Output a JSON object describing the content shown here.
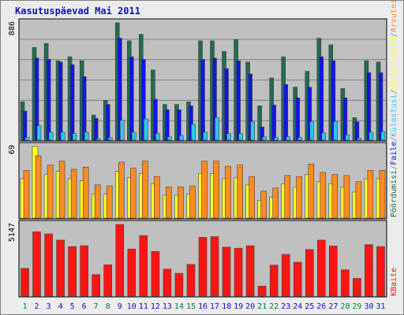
{
  "chart_data": {
    "type": "bar",
    "title": "Kasutuspäevad Mai 2011",
    "categories": [
      "1",
      "2",
      "3",
      "4",
      "5",
      "6",
      "7",
      "8",
      "9",
      "10",
      "11",
      "12",
      "13",
      "14",
      "15",
      "16",
      "17",
      "18",
      "19",
      "20",
      "21",
      "22",
      "23",
      "24",
      "25",
      "26",
      "27",
      "28",
      "29",
      "30",
      "31"
    ],
    "weekend_days": [
      "1",
      "7",
      "8",
      "14",
      "15",
      "21",
      "22",
      "28",
      "29"
    ],
    "panels": [
      {
        "name": "visits",
        "max_label": "886",
        "ylim": [
          0,
          886
        ],
        "series": [
          {
            "name": "Pöördumisi",
            "color": "#1e6e50",
            "values": [
              290,
              700,
              730,
              600,
              630,
              600,
              190,
              300,
              886,
              750,
              800,
              530,
              270,
              270,
              290,
              750,
              750,
              670,
              760,
              590,
              260,
              470,
              630,
              400,
              520,
              770,
              720,
              390,
              170,
              600,
              590
            ]
          },
          {
            "name": "Faile",
            "color": "#1414e6",
            "values": [
              220,
              620,
              610,
              590,
              570,
              480,
              165,
              270,
              770,
              630,
              610,
              310,
              230,
              230,
              260,
              610,
              620,
              540,
              600,
              500,
              100,
              265,
              420,
              320,
              400,
              630,
              600,
              320,
              140,
              510,
              510
            ]
          },
          {
            "name": "Külastusi",
            "color": "#28c8f0",
            "values": [
              20,
              110,
              60,
              60,
              50,
              60,
              10,
              20,
              150,
              60,
              160,
              50,
              25,
              35,
              120,
              60,
              170,
              50,
              50,
              140,
              25,
              20,
              25,
              20,
              140,
              55,
              140,
              40,
              15,
              60,
              65
            ]
          }
        ]
      },
      {
        "name": "hosts",
        "max_label": "69",
        "ylim": [
          0,
          69
        ],
        "series": [
          {
            "name": "Külastajaid",
            "color": "#ffff28",
            "values": [
              38,
              69,
              42,
              45,
              38,
              36,
              23,
              23,
              45,
              39,
              43,
              33,
              22,
              22,
              23,
              43,
              43,
              38,
              39,
              32,
              17,
              20,
              33,
              30,
              42,
              35,
              33,
              30,
              25,
              38,
              38
            ]
          },
          {
            "name": "Arvuteid",
            "color": "#ff8c1e",
            "values": [
              46,
              60,
              51,
              55,
              47,
              49,
              32,
              31,
              54,
              48,
              55,
              40,
              30,
              30,
              31,
              55,
              55,
              50,
              51,
              40,
              26,
              29,
              41,
              40,
              52,
              44,
              42,
              41,
              35,
              46,
              46
            ]
          }
        ]
      },
      {
        "name": "bandwidth",
        "max_label": "5147",
        "ylim": [
          0,
          5147
        ],
        "series": [
          {
            "name": "KBaite",
            "color": "#ff1414",
            "values": [
              1990,
              4620,
              4470,
              4020,
              3560,
              3620,
              1550,
              2250,
              5147,
              3380,
              4350,
              3210,
              1940,
              1640,
              2280,
              4220,
              4270,
              3520,
              3440,
              3620,
              720,
              2230,
              3000,
              2430,
              3350,
              4020,
              3600,
              1890,
              1270,
              3700,
              3560
            ]
          }
        ]
      }
    ],
    "right_labels": [
      {
        "text": "Pöördumisi",
        "color": "#1e6e50"
      },
      {
        "text": "/",
        "color": "#808080"
      },
      {
        "text": "Faile",
        "color": "#1414e6"
      },
      {
        "text": "/",
        "color": "#808080"
      },
      {
        "text": "Külastusi",
        "color": "#28c8f0"
      },
      {
        "text": "/",
        "color": "#808080"
      },
      {
        "text": "Külastajaid",
        "color": "#ffff28"
      },
      {
        "text": "/",
        "color": "#808080"
      },
      {
        "text": "Arvuteid",
        "color": "#ff8c1e"
      },
      {
        "text": "KBaite",
        "color": "#ff1414"
      }
    ],
    "colors": {
      "plot_bg": "#c0c0c0",
      "gridline": "#808080",
      "weekday_label": "#1010c8",
      "weekend_label": "#008040",
      "title": "#1010c8"
    }
  }
}
